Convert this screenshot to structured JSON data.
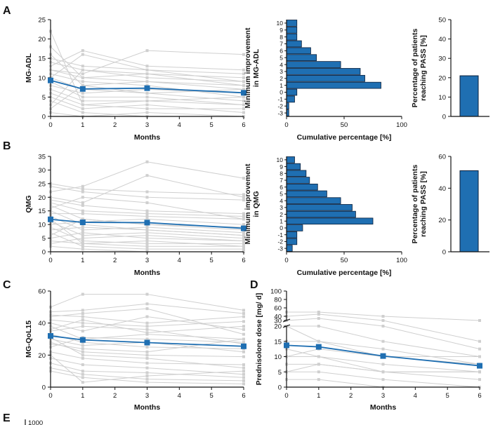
{
  "panels": {
    "A": "A",
    "B": "B",
    "C": "C",
    "D": "D",
    "E": "E"
  },
  "colors": {
    "mean": "#1f6fb2",
    "individual": "#cfcfcf",
    "bar": "#1f6fb2",
    "bar_edge": "#0b1f3a"
  },
  "chart_data": [
    {
      "id": "A-left",
      "type": "line",
      "panel": "A",
      "xlabel": "Months",
      "ylabel": "MG-ADL",
      "xlim": [
        0,
        6
      ],
      "ylim": [
        0,
        25
      ],
      "xticks": [
        0,
        1,
        2,
        3,
        4,
        5,
        6
      ],
      "yticks": [
        0,
        5,
        10,
        15,
        20,
        25
      ],
      "x": [
        0,
        1,
        3,
        6
      ],
      "series": [
        {
          "values": [
            9.3,
            7.1,
            7.3,
            6.1
          ]
        }
      ],
      "individual_series": [
        [
          22,
          3,
          4,
          5
        ],
        [
          18,
          10,
          9,
          8
        ],
        [
          16,
          8,
          6,
          7
        ],
        [
          14,
          12,
          10,
          9
        ],
        [
          13,
          17,
          13,
          12
        ],
        [
          12,
          11,
          17,
          16
        ],
        [
          11,
          9,
          8,
          5
        ],
        [
          10,
          16,
          12,
          9
        ],
        [
          9,
          5,
          5,
          3
        ],
        [
          8,
          6,
          7,
          6
        ],
        [
          7,
          4,
          4,
          3
        ],
        [
          6,
          3,
          2,
          2
        ],
        [
          5,
          2,
          3,
          1
        ],
        [
          4,
          1,
          0,
          0
        ],
        [
          3,
          12,
          11,
          10
        ],
        [
          2,
          8,
          9,
          7
        ],
        [
          1,
          0,
          1,
          0
        ],
        [
          10,
          7,
          6,
          4
        ],
        [
          12,
          10,
          11,
          8
        ],
        [
          15,
          13,
          12,
          11
        ]
      ]
    },
    {
      "id": "A-mid",
      "type": "bar",
      "panel": "A",
      "orientation": "horizontal",
      "ylabel": "Minimum improvement\nin MG-ADL",
      "xlabel": "Cumulative percentage [%]",
      "xlim": [
        0,
        100
      ],
      "xticks": [
        0,
        50,
        100
      ],
      "categories": [
        "10",
        "9",
        "8",
        "7",
        "6",
        "5",
        "4",
        "3",
        "2",
        "1",
        "0",
        "-1",
        "-2",
        "-3"
      ],
      "values": [
        9,
        9,
        9,
        13,
        21,
        26,
        47,
        64,
        68,
        82,
        9,
        7,
        2,
        2
      ]
    },
    {
      "id": "A-right",
      "type": "bar",
      "panel": "A",
      "ylabel": "Percentage of patients\nreaching PASS [%]",
      "ylim": [
        0,
        50
      ],
      "yticks": [
        0,
        10,
        20,
        30,
        40,
        50
      ],
      "categories": [
        ""
      ],
      "values": [
        21
      ]
    },
    {
      "id": "B-left",
      "type": "line",
      "panel": "B",
      "xlabel": "Months",
      "ylabel": "QMG",
      "xlim": [
        0,
        6
      ],
      "ylim": [
        0,
        35
      ],
      "xticks": [
        0,
        1,
        2,
        3,
        4,
        5,
        6
      ],
      "yticks": [
        0,
        5,
        10,
        15,
        20,
        25,
        30,
        35
      ],
      "x": [
        0,
        1,
        3,
        6
      ],
      "series": [
        {
          "values": [
            11.9,
            10.8,
            10.7,
            8.6
          ]
        }
      ],
      "individual_series": [
        [
          25,
          23,
          22,
          21
        ],
        [
          22,
          24,
          33,
          27
        ],
        [
          20,
          18,
          28,
          20
        ],
        [
          18,
          15,
          14,
          13
        ],
        [
          17,
          12,
          10,
          9
        ],
        [
          16,
          20,
          18,
          12
        ],
        [
          15,
          10,
          8,
          6
        ],
        [
          14,
          14,
          13,
          12
        ],
        [
          13,
          8,
          9,
          7
        ],
        [
          12,
          3,
          4,
          2
        ],
        [
          11,
          6,
          7,
          5
        ],
        [
          10,
          11,
          12,
          10
        ],
        [
          9,
          4,
          3,
          3
        ],
        [
          8,
          9,
          8,
          6
        ],
        [
          7,
          2,
          1,
          1
        ],
        [
          6,
          12,
          10,
          8
        ],
        [
          5,
          7,
          5,
          4
        ],
        [
          4,
          3,
          2,
          2
        ],
        [
          3,
          5,
          6,
          4
        ],
        [
          2,
          1,
          0,
          0
        ],
        [
          24,
          22,
          20,
          19
        ],
        [
          19,
          17,
          15,
          14
        ]
      ]
    },
    {
      "id": "B-mid",
      "type": "bar",
      "panel": "B",
      "orientation": "horizontal",
      "ylabel": "Minimum improvement\nin QMG",
      "xlabel": "Cumulative percentage [%]",
      "xlim": [
        0,
        100
      ],
      "xticks": [
        0,
        50,
        100
      ],
      "categories": [
        "10",
        "9",
        "8",
        "7",
        "6",
        "5",
        "4",
        "3",
        "2",
        "1",
        "0",
        "-1",
        "-2",
        "-3"
      ],
      "values": [
        7,
        12,
        17,
        20,
        27,
        35,
        47,
        57,
        60,
        75,
        14,
        9,
        9,
        5
      ]
    },
    {
      "id": "B-right",
      "type": "bar",
      "panel": "B",
      "ylabel": "Percentage of patients\nreaching PASS [%]",
      "ylim": [
        0,
        60
      ],
      "yticks": [
        0,
        20,
        40,
        60
      ],
      "categories": [
        ""
      ],
      "values": [
        51
      ]
    },
    {
      "id": "C",
      "type": "line",
      "panel": "C",
      "xlabel": "Months",
      "ylabel": "MG-QoL15",
      "xlim": [
        0,
        6
      ],
      "ylim": [
        0,
        60
      ],
      "xticks": [
        0,
        1,
        2,
        3,
        4,
        5,
        6
      ],
      "yticks": [
        0,
        20,
        40,
        60
      ],
      "x": [
        0,
        1,
        3,
        6
      ],
      "series": [
        {
          "values": [
            32,
            29.5,
            27.8,
            25.5
          ]
        }
      ],
      "individual_series": [
        [
          50,
          58,
          58,
          48
        ],
        [
          47,
          48,
          52,
          46
        ],
        [
          45,
          44,
          40,
          44
        ],
        [
          42,
          40,
          38,
          41
        ],
        [
          40,
          35,
          44,
          36
        ],
        [
          38,
          30,
          33,
          30
        ],
        [
          35,
          38,
          36,
          27
        ],
        [
          33,
          28,
          25,
          24
        ],
        [
          30,
          26,
          28,
          22
        ],
        [
          28,
          22,
          20,
          19
        ],
        [
          25,
          31,
          30,
          28
        ],
        [
          22,
          18,
          15,
          14
        ],
        [
          20,
          3,
          7,
          10
        ],
        [
          18,
          14,
          12,
          8
        ],
        [
          15,
          10,
          9,
          6
        ],
        [
          12,
          8,
          5,
          4
        ],
        [
          10,
          6,
          3,
          2
        ],
        [
          36,
          42,
          34,
          38
        ],
        [
          27,
          24,
          22,
          30
        ],
        [
          44,
          46,
          49,
          33
        ],
        [
          31,
          20,
          18,
          12
        ]
      ]
    },
    {
      "id": "D",
      "type": "line",
      "panel": "D",
      "xlabel": "Months",
      "ylabel": "Prednisolone dose [mg/ d]",
      "xlim": [
        0,
        6
      ],
      "ylim": [
        0,
        100
      ],
      "broken_axis": [
        20,
        30
      ],
      "xticks": [
        0,
        1,
        2,
        3,
        4,
        5,
        6
      ],
      "yticks": [
        0,
        5,
        10,
        15,
        20,
        30,
        40,
        60,
        80,
        100
      ],
      "x": [
        0,
        1,
        3,
        6
      ],
      "series": [
        {
          "values": [
            13.7,
            13.2,
            10.2,
            7.0
          ]
        }
      ],
      "individual_series": [
        [
          50,
          50,
          40,
          30
        ],
        [
          40,
          45,
          30,
          15
        ],
        [
          30,
          35,
          20,
          12.5
        ],
        [
          20,
          20,
          15,
          10
        ],
        [
          15,
          15,
          12.5,
          7.5
        ],
        [
          12.5,
          10,
          7.5,
          5
        ],
        [
          10,
          10,
          5,
          5
        ],
        [
          7.5,
          7.5,
          5,
          2.5
        ],
        [
          5,
          5,
          2.5,
          0
        ],
        [
          2.5,
          2.5,
          0,
          0
        ],
        [
          10,
          12.5,
          10,
          7.5
        ],
        [
          5,
          7.5,
          5,
          5
        ],
        [
          20,
          15,
          10,
          10
        ]
      ]
    }
  ],
  "e_axis_fragment": "1000"
}
